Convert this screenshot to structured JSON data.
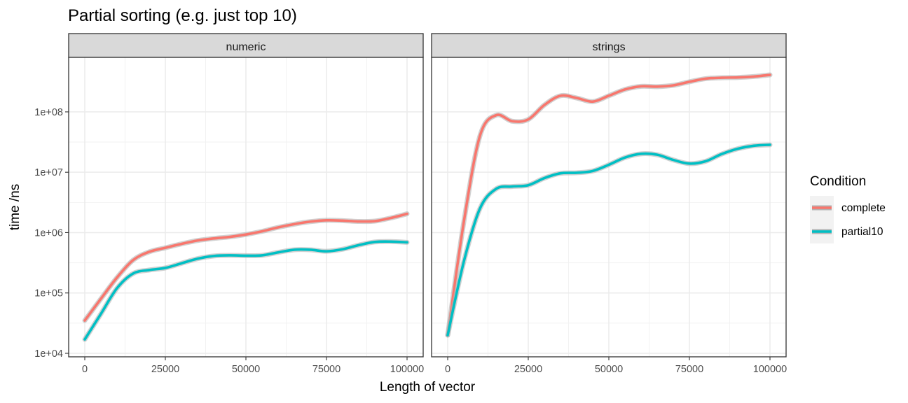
{
  "chart_data": {
    "type": "line",
    "title": "Partial sorting (e.g. just top 10)",
    "xlabel": "Length of vector",
    "ylabel": "time /ns",
    "y_scale": "log10",
    "ylim": [
      10000,
      700000000
    ],
    "xlim": [
      0,
      100000
    ],
    "x_ticks": [
      0,
      25000,
      50000,
      75000,
      100000
    ],
    "x_tick_labels": [
      "0",
      "25000",
      "50000",
      "75000",
      "100000"
    ],
    "y_ticks": [
      10000,
      100000,
      1000000,
      10000000,
      100000000
    ],
    "y_tick_labels": [
      "1e+04",
      "1e+05",
      "1e+06",
      "1e+07",
      "1e+08"
    ],
    "grid": true,
    "legend": {
      "title": "Condition",
      "position": "right",
      "entries": [
        {
          "label": "complete",
          "color": "#F8766D"
        },
        {
          "label": "partial10",
          "color": "#00BFC4"
        }
      ]
    },
    "facets": [
      {
        "label": "numeric",
        "series": [
          {
            "name": "complete",
            "color": "#F8766D",
            "x": [
              0,
              5000,
              10000,
              15000,
              20000,
              25000,
              30000,
              35000,
              40000,
              45000,
              50000,
              55000,
              60000,
              65000,
              70000,
              75000,
              80000,
              85000,
              90000,
              95000,
              100000
            ],
            "y": [
              35000,
              80000,
              180000,
              350000,
              480000,
              560000,
              650000,
              740000,
              800000,
              850000,
              930000,
              1050000,
              1220000,
              1380000,
              1520000,
              1600000,
              1580000,
              1530000,
              1550000,
              1750000,
              2050000
            ]
          },
          {
            "name": "partial10",
            "color": "#00BFC4",
            "x": [
              0,
              5000,
              10000,
              15000,
              20000,
              25000,
              30000,
              35000,
              40000,
              45000,
              50000,
              55000,
              60000,
              65000,
              70000,
              75000,
              80000,
              85000,
              90000,
              95000,
              100000
            ],
            "y": [
              17000,
              45000,
              120000,
              210000,
              240000,
              260000,
              310000,
              370000,
              410000,
              420000,
              415000,
              420000,
              470000,
              520000,
              520000,
              490000,
              530000,
              620000,
              700000,
              710000,
              690000
            ]
          }
        ]
      },
      {
        "label": "strings",
        "series": [
          {
            "name": "complete",
            "color": "#F8766D",
            "x": [
              0,
              5000,
              10000,
              15000,
              20000,
              25000,
              30000,
              35000,
              40000,
              45000,
              50000,
              55000,
              60000,
              65000,
              70000,
              75000,
              80000,
              85000,
              90000,
              95000,
              100000
            ],
            "y": [
              20000,
              1500000,
              40000000,
              88000000,
              70000000,
              75000000,
              130000000,
              185000000,
              170000000,
              148000000,
              185000000,
              235000000,
              265000000,
              262000000,
              275000000,
              315000000,
              355000000,
              368000000,
              372000000,
              385000000,
              410000000
            ]
          },
          {
            "name": "partial10",
            "color": "#00BFC4",
            "x": [
              0,
              5000,
              10000,
              15000,
              20000,
              25000,
              30000,
              35000,
              40000,
              45000,
              50000,
              55000,
              60000,
              65000,
              70000,
              75000,
              80000,
              85000,
              90000,
              95000,
              100000
            ],
            "y": [
              20000,
              330000,
              2500000,
              5300000,
              5800000,
              6100000,
              8000000,
              9600000,
              9800000,
              10500000,
              13300000,
              17500000,
              20200000,
              19500000,
              16000000,
              13900000,
              15200000,
              20000000,
              24500000,
              27500000,
              28500000
            ]
          }
        ]
      }
    ]
  }
}
